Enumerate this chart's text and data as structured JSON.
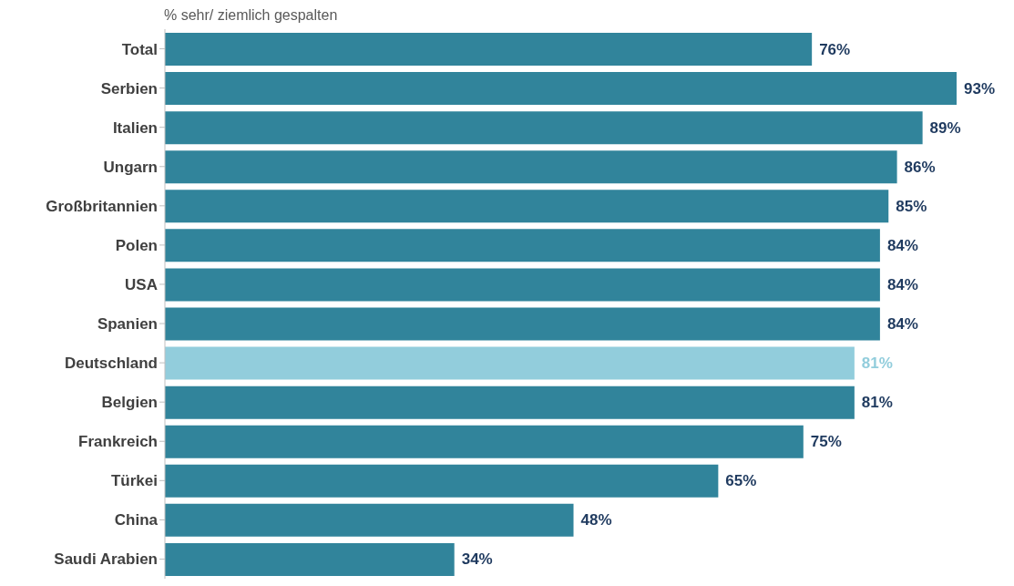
{
  "chart_data": {
    "type": "bar",
    "orientation": "horizontal",
    "title": "% sehr/ ziemlich gespalten",
    "categories": [
      "Total",
      "Serbien",
      "Italien",
      "Ungarn",
      "Großbritannien",
      "Polen",
      "USA",
      "Spanien",
      "Deutschland",
      "Belgien",
      "Frankreich",
      "Türkei",
      "China",
      "Saudi Arabien"
    ],
    "values": [
      76,
      93,
      89,
      86,
      85,
      84,
      84,
      84,
      81,
      81,
      75,
      65,
      48,
      34
    ],
    "value_labels": [
      "76%",
      "93%",
      "89%",
      "86%",
      "85%",
      "84%",
      "84%",
      "84%",
      "81%",
      "81%",
      "75%",
      "65%",
      "48%",
      "34%"
    ],
    "colors": [
      "#31849b",
      "#31849b",
      "#31849b",
      "#31849b",
      "#31849b",
      "#31849b",
      "#31849b",
      "#31849b",
      "#92cddc",
      "#31849b",
      "#31849b",
      "#31849b",
      "#31849b",
      "#31849b"
    ],
    "grid": false,
    "legend": false
  }
}
